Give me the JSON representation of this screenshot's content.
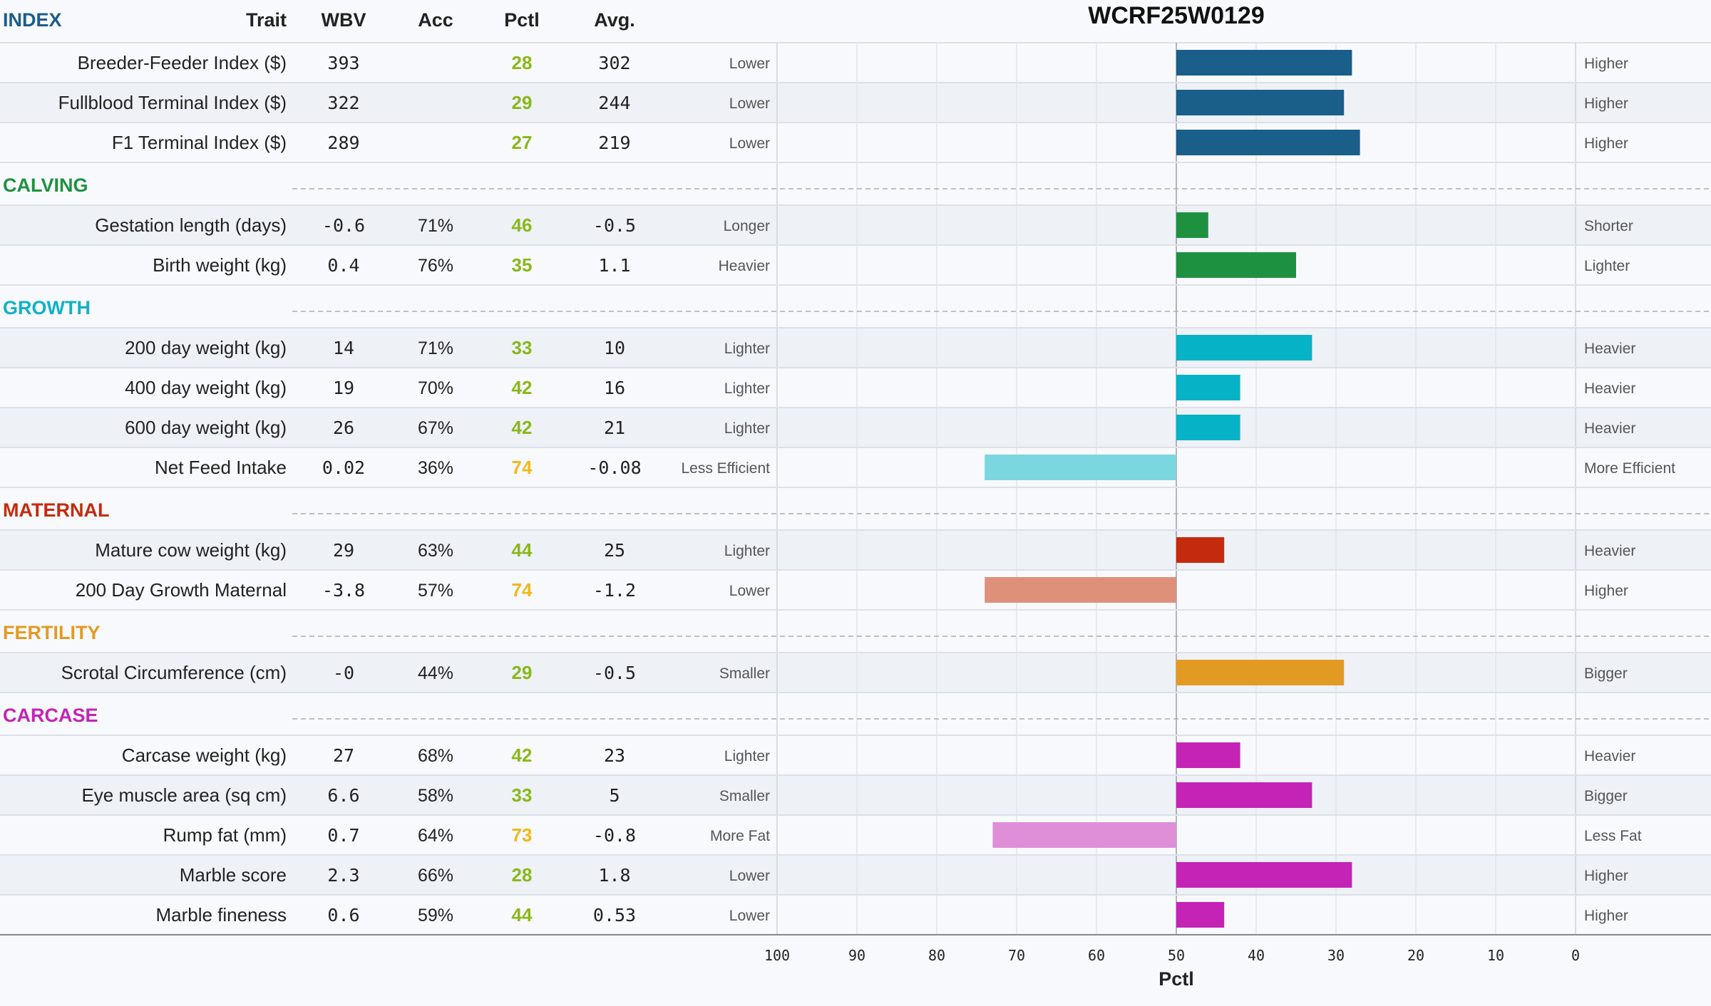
{
  "header": {
    "index_label": "INDEX",
    "trait": "Trait",
    "wbv": "WBV",
    "acc": "Acc",
    "pctl": "Pctl",
    "avg": "Avg."
  },
  "chart_data": {
    "type": "bar",
    "title": "WCRF25W0129",
    "xlabel": "Pctl",
    "xlim": [
      100,
      0
    ],
    "x_ticks": [
      "100",
      "90",
      "80",
      "70",
      "60",
      "50",
      "40",
      "30",
      "20",
      "10",
      "0"
    ],
    "baseline": 50,
    "grid": true,
    "sections": [
      {
        "name": "INDEX",
        "color": "#1a5e8a",
        "header_in_table_header": true,
        "rows": [
          {
            "trait": "Breeder-Feeder Index ($)",
            "wbv": "393",
            "acc": "",
            "pctl": 28,
            "avg": "302",
            "left": "Lower",
            "right": "Higher",
            "color": "#1a5e8a"
          },
          {
            "trait": "Fullblood Terminal Index ($)",
            "wbv": "322",
            "acc": "",
            "pctl": 29,
            "avg": "244",
            "left": "Lower",
            "right": "Higher",
            "color": "#1a5e8a"
          },
          {
            "trait": "F1 Terminal Index ($)",
            "wbv": "289",
            "acc": "",
            "pctl": 27,
            "avg": "219",
            "left": "Lower",
            "right": "Higher",
            "color": "#1a5e8a"
          }
        ]
      },
      {
        "name": "CALVING",
        "color": "#1e9140",
        "rows": [
          {
            "trait": "Gestation length (days)",
            "wbv": "-0.6",
            "acc": "71%",
            "pctl": 46,
            "avg": "-0.5",
            "left": "Longer",
            "right": "Shorter",
            "color": "#1e9140"
          },
          {
            "trait": "Birth weight (kg)",
            "wbv": "0.4",
            "acc": "76%",
            "pctl": 35,
            "avg": "1.1",
            "left": "Heavier",
            "right": "Lighter",
            "color": "#1e9140"
          }
        ]
      },
      {
        "name": "GROWTH",
        "color": "#0fb2c6",
        "rows": [
          {
            "trait": "200 day weight (kg)",
            "wbv": "14",
            "acc": "71%",
            "pctl": 33,
            "avg": "10",
            "left": "Lighter",
            "right": "Heavier",
            "color": "#06b2c6"
          },
          {
            "trait": "400 day weight (kg)",
            "wbv": "19",
            "acc": "70%",
            "pctl": 42,
            "avg": "16",
            "left": "Lighter",
            "right": "Heavier",
            "color": "#06b2c6"
          },
          {
            "trait": "600 day weight (kg)",
            "wbv": "26",
            "acc": "67%",
            "pctl": 42,
            "avg": "21",
            "left": "Lighter",
            "right": "Heavier",
            "color": "#06b2c6"
          },
          {
            "trait": "Net Feed Intake",
            "wbv": "0.02",
            "acc": "36%",
            "pctl": 74,
            "avg": "-0.08",
            "left": "Less Efficient",
            "right": "More Efficient",
            "color": "#7ad6df"
          }
        ]
      },
      {
        "name": "MATERNAL",
        "color": "#c42b0c",
        "rows": [
          {
            "trait": "Mature cow weight (kg)",
            "wbv": "29",
            "acc": "63%",
            "pctl": 44,
            "avg": "25",
            "left": "Lighter",
            "right": "Heavier",
            "color": "#c42b0c"
          },
          {
            "trait": "200 Day Growth Maternal",
            "wbv": "-3.8",
            "acc": "57%",
            "pctl": 74,
            "avg": "-1.2",
            "left": "Lower",
            "right": "Higher",
            "color": "#df907b"
          }
        ]
      },
      {
        "name": "FERTILITY",
        "color": "#e39a22",
        "rows": [
          {
            "trait": "Scrotal Circumference (cm)",
            "wbv": "-0",
            "acc": "44%",
            "pctl": 29,
            "avg": "-0.5",
            "left": "Smaller",
            "right": "Bigger",
            "color": "#e39a22"
          }
        ]
      },
      {
        "name": "CARCASE",
        "color": "#c423b6",
        "rows": [
          {
            "trait": "Carcase weight (kg)",
            "wbv": "27",
            "acc": "68%",
            "pctl": 42,
            "avg": "23",
            "left": "Lighter",
            "right": "Heavier",
            "color": "#c423b6"
          },
          {
            "trait": "Eye muscle area (sq cm)",
            "wbv": "6.6",
            "acc": "58%",
            "pctl": 33,
            "avg": "5",
            "left": "Smaller",
            "right": "Bigger",
            "color": "#c423b6"
          },
          {
            "trait": "Rump fat (mm)",
            "wbv": "0.7",
            "acc": "64%",
            "pctl": 73,
            "avg": "-0.8",
            "left": "More Fat",
            "right": "Less Fat",
            "color": "#df8fd8"
          },
          {
            "trait": "Marble score",
            "wbv": "2.3",
            "acc": "66%",
            "pctl": 28,
            "avg": "1.8",
            "left": "Lower",
            "right": "Higher",
            "color": "#c423b6"
          },
          {
            "trait": "Marble fineness",
            "wbv": "0.6",
            "acc": "59%",
            "pctl": 44,
            "avg": "0.53",
            "left": "Lower",
            "right": "Higher",
            "color": "#c423b6"
          }
        ]
      }
    ]
  },
  "colors": {
    "pctl_green": "#8ab81a",
    "pctl_yellow": "#f0b81a",
    "row_stripe": "#eef1f6",
    "grid": "#e2e5ea"
  }
}
